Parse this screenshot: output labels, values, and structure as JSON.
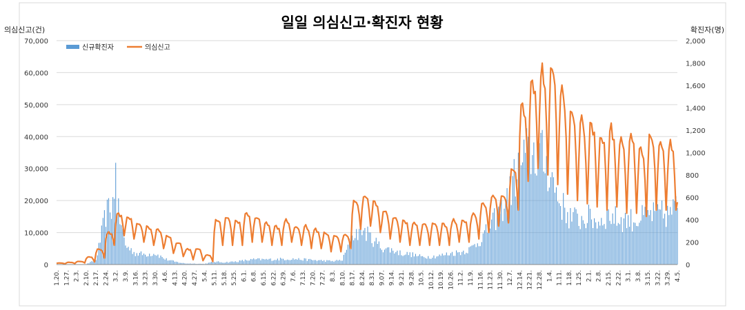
{
  "chart_data": {
    "type": "bar+line",
    "title": "일일 의심신고·확진자 현황",
    "y_left_label": "의심신고(건)",
    "y_right_label": "확진자(명)",
    "y_left_range": [
      0,
      70000
    ],
    "y_right_range": [
      0,
      2000
    ],
    "y_left_ticks": [
      "0",
      "10,000",
      "20,000",
      "30,000",
      "40,000",
      "50,000",
      "60,000",
      "70,000"
    ],
    "y_right_ticks": [
      "0",
      "200",
      "400",
      "600",
      "800",
      "1,000",
      "1,200",
      "1,400",
      "1,600",
      "1,800",
      "2,000"
    ],
    "x_ticks": [
      "1.20.",
      "1.27.",
      "2.3.",
      "2.10.",
      "2.17.",
      "2.24.",
      "3.2.",
      "3.9.",
      "3.16.",
      "3.23.",
      "3.30.",
      "4.6.",
      "4.13.",
      "4.20.",
      "4.27.",
      "5.4.",
      "5.11.",
      "5.18.",
      "5.25.",
      "6.1.",
      "6.8.",
      "6.15.",
      "6.22.",
      "6.29.",
      "7.6.",
      "7.13.",
      "7.20.",
      "7.27.",
      "8.3.",
      "8.10.",
      "8.17.",
      "8.24.",
      "8.31.",
      "9.07.",
      "9.14.",
      "9.21.",
      "9.28.",
      "10.5.",
      "10.12.",
      "10.19.",
      "10.26.",
      "11.2.",
      "11.9.",
      "11.16.",
      "11.23.",
      "11.30.",
      "12.7.",
      "12.14.",
      "12.21.",
      "12.28.",
      "1.4.",
      "1.11.",
      "1.18.",
      "1.25.",
      "2.1.",
      "2.8.",
      "2.15.",
      "2.22.",
      "3.1.",
      "3.8.",
      "3.15.",
      "3.22.",
      "3.29.",
      "4.5."
    ],
    "legend": {
      "placement": "top-left",
      "bar_label": "신규확진자",
      "line_label": "의심신고"
    },
    "colors": {
      "bar": "#5b9bd5",
      "line": "#ed7d31",
      "grid": "#d9d9d9"
    },
    "series": [
      {
        "name": "신규확진자",
        "axis": "right",
        "kind": "bar",
        "weekly_avg": [
          1,
          2,
          2,
          3,
          40,
          450,
          580,
          170,
          100,
          90,
          100,
          50,
          25,
          10,
          8,
          6,
          25,
          20,
          25,
          35,
          45,
          45,
          45,
          50,
          50,
          45,
          40,
          35,
          30,
          40,
          250,
          320,
          230,
          150,
          130,
          100,
          90,
          70,
          70,
          80,
          100,
          110,
          140,
          220,
          330,
          480,
          640,
          920,
          1000,
          990,
          850,
          570,
          430,
          400,
          420,
          380,
          450,
          400,
          400,
          400,
          440,
          460,
          440,
          520
        ]
      },
      {
        "name": "의심신고",
        "axis": "left",
        "kind": "line",
        "weekday_highs": [
          500,
          700,
          1000,
          2500,
          5000,
          10000,
          16000,
          15000,
          13000,
          12000,
          11000,
          9000,
          7000,
          5000,
          5000,
          3000,
          14000,
          15000,
          14000,
          16000,
          15000,
          13000,
          12000,
          14000,
          12000,
          12000,
          11000,
          10000,
          9000,
          9500,
          20000,
          22000,
          20000,
          17000,
          15000,
          14000,
          13000,
          13000,
          13000,
          13000,
          14000,
          14000,
          16000,
          19000,
          22000,
          22000,
          30000,
          50000,
          58000,
          61000,
          63000,
          55000,
          48000,
          45000,
          44000,
          41000,
          43000,
          40000,
          40000,
          37000,
          41000,
          39000,
          38000,
          33000
        ],
        "weekend_lows": [
          200,
          300,
          500,
          800,
          2000,
          6000,
          9000,
          8000,
          7000,
          6000,
          5000,
          3500,
          2500,
          1500,
          1200,
          900,
          6000,
          6000,
          6000,
          7000,
          7000,
          6000,
          6000,
          7000,
          6000,
          5000,
          5000,
          4000,
          4000,
          5000,
          11000,
          12000,
          10000,
          8000,
          7000,
          6000,
          6000,
          6000,
          6000,
          6000,
          7000,
          7000,
          8000,
          10000,
          12000,
          13000,
          17000,
          26000,
          30000,
          28000,
          25000,
          22000,
          20000,
          19000,
          18000,
          17000,
          18000,
          16000,
          16000,
          15000,
          17000,
          17000,
          17000,
          16000
        ],
        "end_value": 19500
      }
    ]
  }
}
